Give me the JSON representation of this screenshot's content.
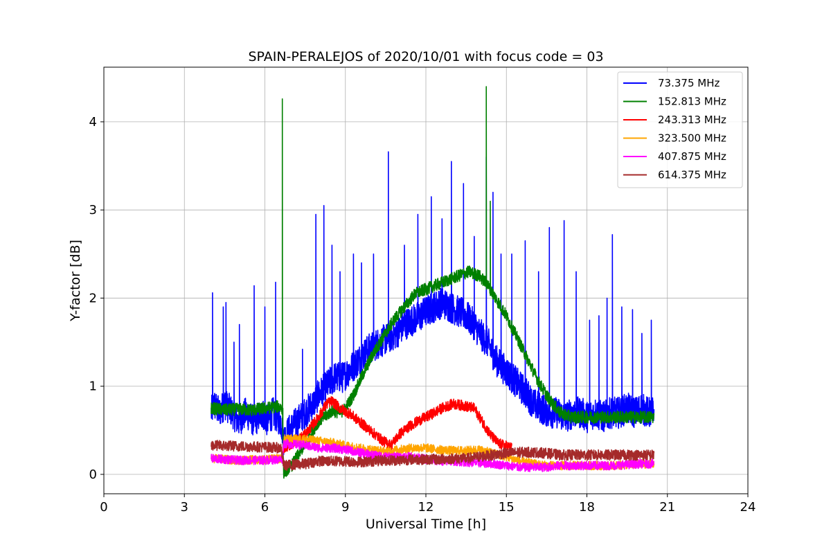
{
  "chart_data": {
    "type": "line",
    "title": "SPAIN-PERALEJOS of 2020/10/01 with focus code = 03",
    "xlabel": "Universal Time [h]",
    "ylabel": "Y-factor [dB]",
    "xlim": [
      0,
      24
    ],
    "ylim": [
      -0.22,
      4.62
    ],
    "xticks": [
      0,
      3,
      6,
      9,
      12,
      15,
      18,
      21,
      24
    ],
    "yticks": [
      0,
      1,
      2,
      3,
      4
    ],
    "grid": true,
    "legend_position": "top-right",
    "series": [
      {
        "name": " 73.375 MHz",
        "color": "#0000ff",
        "x": [
          4.0,
          4.1,
          4.3,
          4.5,
          4.8,
          5.0,
          5.3,
          5.6,
          5.9,
          6.1,
          6.3,
          6.6,
          6.7,
          6.9,
          7.2,
          7.5,
          7.8,
          8.0,
          8.3,
          8.6,
          8.9,
          9.2,
          9.5,
          9.8,
          10.0,
          10.3,
          10.6,
          10.9,
          11.2,
          11.5,
          11.8,
          12.0,
          12.3,
          12.6,
          12.9,
          13.2,
          13.5,
          13.8,
          14.0,
          14.3,
          14.6,
          14.9,
          15.2,
          15.5,
          15.8,
          16.0,
          16.3,
          16.6,
          16.9,
          17.2,
          17.5,
          17.8,
          18.0,
          18.3,
          18.6,
          18.9,
          19.2,
          19.5,
          19.8,
          20.0,
          20.3,
          20.5
        ],
        "y": [
          0.7,
          0.8,
          0.7,
          0.8,
          0.7,
          0.6,
          0.7,
          0.6,
          0.7,
          0.6,
          0.7,
          0.6,
          0.4,
          0.5,
          0.6,
          0.7,
          0.8,
          0.9,
          1.0,
          1.1,
          1.1,
          1.2,
          1.3,
          1.4,
          1.45,
          1.5,
          1.55,
          1.6,
          1.7,
          1.75,
          1.8,
          1.85,
          1.9,
          1.95,
          1.9,
          1.85,
          1.8,
          1.7,
          1.6,
          1.5,
          1.3,
          1.2,
          1.1,
          1.0,
          0.9,
          0.8,
          0.75,
          0.7,
          0.7,
          0.65,
          0.7,
          0.7,
          0.65,
          0.7,
          0.65,
          0.7,
          0.7,
          0.75,
          0.7,
          0.75,
          0.7,
          0.7
        ],
        "spikes": [
          [
            4.05,
            2.06
          ],
          [
            4.45,
            1.9
          ],
          [
            4.55,
            1.95
          ],
          [
            4.85,
            1.5
          ],
          [
            5.05,
            1.7
          ],
          [
            5.6,
            2.14
          ],
          [
            6.0,
            1.9
          ],
          [
            6.4,
            2.18
          ],
          [
            7.4,
            1.42
          ],
          [
            7.9,
            2.95
          ],
          [
            8.2,
            3.05
          ],
          [
            8.5,
            2.6
          ],
          [
            8.8,
            2.3
          ],
          [
            9.3,
            2.5
          ],
          [
            9.6,
            2.4
          ],
          [
            10.05,
            2.5
          ],
          [
            10.6,
            3.66
          ],
          [
            11.2,
            2.6
          ],
          [
            11.7,
            2.95
          ],
          [
            12.2,
            3.15
          ],
          [
            12.6,
            2.9
          ],
          [
            12.95,
            3.55
          ],
          [
            13.4,
            3.3
          ],
          [
            13.8,
            2.7
          ],
          [
            14.25,
            3.6
          ],
          [
            14.5,
            3.2
          ],
          [
            14.8,
            2.5
          ],
          [
            15.2,
            2.5
          ],
          [
            15.7,
            2.65
          ],
          [
            16.2,
            2.3
          ],
          [
            16.6,
            2.8
          ],
          [
            17.15,
            2.88
          ],
          [
            17.6,
            2.3
          ],
          [
            18.1,
            1.75
          ],
          [
            18.45,
            1.8
          ],
          [
            18.75,
            2.0
          ],
          [
            18.95,
            2.72
          ],
          [
            19.3,
            1.9
          ],
          [
            19.7,
            1.87
          ],
          [
            20.05,
            1.6
          ],
          [
            20.4,
            1.75
          ]
        ]
      },
      {
        "name": "152.813 MHz",
        "color": "#008000",
        "x": [
          4.0,
          4.5,
          5.0,
          5.5,
          6.0,
          6.5,
          6.65,
          6.7,
          7.0,
          7.5,
          8.0,
          8.5,
          8.8,
          9.0,
          9.3,
          9.6,
          10.0,
          10.4,
          10.8,
          11.2,
          11.6,
          12.0,
          12.4,
          12.8,
          13.2,
          13.6,
          14.0,
          14.3,
          14.6,
          15.0,
          15.4,
          15.8,
          16.2,
          16.6,
          17.0,
          17.4,
          17.8,
          18.2,
          18.6,
          19.0,
          19.5,
          20.0,
          20.5
        ],
        "y": [
          0.75,
          0.73,
          0.74,
          0.73,
          0.75,
          0.77,
          0.75,
          0.02,
          0.1,
          0.35,
          0.6,
          0.72,
          0.7,
          0.75,
          0.9,
          1.1,
          1.35,
          1.55,
          1.75,
          1.9,
          2.05,
          2.1,
          2.15,
          2.2,
          2.25,
          2.3,
          2.25,
          2.15,
          2.0,
          1.8,
          1.55,
          1.3,
          1.05,
          0.85,
          0.7,
          0.65,
          0.65,
          0.65,
          0.65,
          0.65,
          0.65,
          0.65,
          0.65
        ],
        "spikes": [
          [
            6.65,
            4.26
          ],
          [
            14.25,
            4.4
          ],
          [
            14.4,
            3.1
          ]
        ]
      },
      {
        "name": "243.313 MHz",
        "color": "#ff0000",
        "x": [
          6.7,
          7.0,
          7.5,
          8.0,
          8.3,
          8.5,
          8.8,
          9.2,
          9.6,
          10.0,
          10.4,
          10.7,
          11.0,
          11.4,
          11.8,
          12.2,
          12.6,
          13.0,
          13.4,
          13.8,
          14.1,
          14.4,
          14.7,
          15.0,
          15.2
        ],
        "y": [
          0.3,
          0.35,
          0.45,
          0.65,
          0.8,
          0.83,
          0.75,
          0.68,
          0.58,
          0.48,
          0.38,
          0.33,
          0.45,
          0.55,
          0.62,
          0.68,
          0.75,
          0.8,
          0.78,
          0.75,
          0.6,
          0.45,
          0.35,
          0.32,
          0.3
        ],
        "spikes": []
      },
      {
        "name": "323.500 MHz",
        "color": "#ffa500",
        "x": [
          4.0,
          5.0,
          6.0,
          6.65,
          6.7,
          7.5,
          8.0,
          8.5,
          9.0,
          9.5,
          10.0,
          10.5,
          11.0,
          11.5,
          12.0,
          12.5,
          13.0,
          13.5,
          14.0,
          14.5,
          15.0,
          15.5,
          16.0,
          16.5,
          17.0,
          18.0,
          19.0,
          20.0,
          20.5
        ],
        "y": [
          0.18,
          0.16,
          0.17,
          0.18,
          0.4,
          0.4,
          0.38,
          0.36,
          0.33,
          0.3,
          0.28,
          0.26,
          0.28,
          0.3,
          0.3,
          0.28,
          0.27,
          0.27,
          0.28,
          0.24,
          0.2,
          0.15,
          0.12,
          0.1,
          0.1,
          0.1,
          0.1,
          0.12,
          0.12
        ],
        "spikes": []
      },
      {
        "name": "407.875 MHz",
        "color": "#ff00ff",
        "x": [
          4.0,
          5.0,
          6.0,
          6.65,
          6.7,
          7.5,
          8.0,
          8.5,
          9.0,
          9.5,
          10.0,
          10.5,
          11.0,
          11.5,
          12.0,
          12.5,
          13.0,
          13.5,
          14.0,
          14.5,
          15.0,
          15.5,
          16.0,
          16.5,
          17.0,
          18.0,
          19.0,
          20.0,
          20.5
        ],
        "y": [
          0.18,
          0.16,
          0.16,
          0.17,
          0.35,
          0.33,
          0.3,
          0.3,
          0.28,
          0.25,
          0.22,
          0.2,
          0.2,
          0.2,
          0.17,
          0.15,
          0.15,
          0.14,
          0.13,
          0.12,
          0.1,
          0.08,
          0.08,
          0.08,
          0.1,
          0.1,
          0.1,
          0.12,
          0.12
        ],
        "spikes": []
      },
      {
        "name": "614.375 MHz",
        "color": "#a52a2a",
        "x": [
          4.0,
          5.0,
          6.0,
          6.6,
          6.7,
          7.5,
          8.0,
          8.5,
          9.0,
          9.5,
          10.0,
          10.5,
          11.0,
          11.5,
          12.0,
          12.5,
          13.0,
          13.5,
          14.0,
          14.5,
          15.0,
          15.5,
          16.0,
          16.5,
          17.0,
          18.0,
          19.0,
          20.0,
          20.5
        ],
        "y": [
          0.33,
          0.32,
          0.31,
          0.3,
          0.1,
          0.12,
          0.15,
          0.15,
          0.15,
          0.14,
          0.15,
          0.16,
          0.16,
          0.17,
          0.17,
          0.17,
          0.18,
          0.18,
          0.2,
          0.22,
          0.24,
          0.25,
          0.25,
          0.24,
          0.22,
          0.22,
          0.22,
          0.22,
          0.22
        ],
        "spikes": []
      }
    ]
  }
}
